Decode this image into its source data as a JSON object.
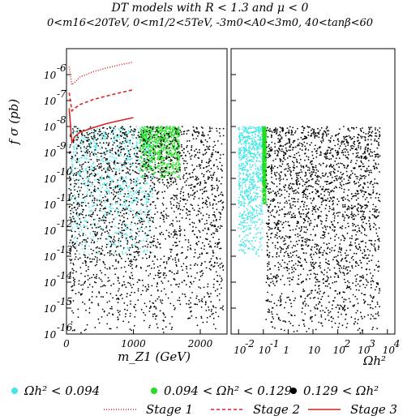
{
  "title_line1": "DT models with R < 1.3 and μ < 0",
  "title_line2": "0<m16<20TeV, 0<m1/2<5TeV, -3m0<A0<3m0, 40<tanβ<60",
  "chart_data": [
    {
      "panel": "left",
      "type": "scatter",
      "xlabel": "m_Z1 (GeV)",
      "ylabel": "f σ (pb)",
      "xlim": [
        0,
        2400
      ],
      "x_ticks": [
        0,
        1000,
        2000
      ],
      "ylim": [
        1e-16,
        1e-05
      ],
      "y_scale": "log",
      "y_tick_labels": [
        "10 -16",
        "10 -15",
        "10 -14",
        "10 -13",
        "10 -12",
        "10 -11",
        "10 -10",
        "10 -9",
        "10 -8",
        "10 -7",
        "10 -6"
      ],
      "series": [
        {
          "name": "Ωh² < 0.094",
          "color": "#40e8e8",
          "regions": [
            {
              "x": [
                60,
                1300
              ],
              "y": [
                1e-13,
                1e-08
              ]
            }
          ]
        },
        {
          "name": "0.094 < Ωh² < 0.129",
          "color": "#22dd22",
          "regions": [
            {
              "x": [
                1100,
                1700
              ],
              "y": [
                1e-10,
                1e-08
              ]
            }
          ]
        },
        {
          "name": "0.129 < Ωh²",
          "color": "#000000",
          "regions": [
            {
              "x": [
                40,
                2350
              ],
              "y": [
                1e-16,
                1e-08
              ]
            }
          ]
        }
      ],
      "curves": [
        {
          "name": "Stage 1",
          "style": "dotted",
          "color": "#dd2222",
          "x": [
            40,
            80,
            120,
            200,
            400,
            600,
            800,
            1000
          ],
          "y": [
            2e-06,
            4e-07,
            5e-07,
            8e-07,
            1.3e-06,
            1.8e-06,
            2.4e-06,
            3e-06
          ]
        },
        {
          "name": "Stage 2",
          "style": "dashed",
          "color": "#dd2222",
          "x": [
            40,
            80,
            120,
            200,
            400,
            600,
            800,
            1000
          ],
          "y": [
            2e-07,
            4e-08,
            5e-08,
            7e-08,
            1.1e-07,
            1.5e-07,
            2e-07,
            2.6e-07
          ]
        },
        {
          "name": "Stage 3",
          "style": "solid",
          "color": "#dd2222",
          "x": [
            40,
            80,
            120,
            200,
            400,
            600,
            800,
            1000
          ],
          "y": [
            5e-08,
            2.5e-09,
            4e-09,
            6e-09,
            9e-09,
            1.3e-08,
            1.7e-08,
            2.2e-08
          ]
        }
      ]
    },
    {
      "panel": "right",
      "type": "scatter",
      "xlabel": "Ωh²",
      "x_scale": "log",
      "xlim": [
        0.005,
        20000.0
      ],
      "x_tick_labels": [
        "10 -2",
        "10 -1",
        "1",
        "10",
        "10 2",
        "10 3",
        "10 4"
      ],
      "ylim": [
        1e-16,
        1e-05
      ],
      "y_scale": "log",
      "series": [
        {
          "name": "Ωh² < 0.094",
          "color": "#40e8e8",
          "regions": [
            {
              "x": [
                0.01,
                0.094
              ],
              "y": [
                1e-13,
                1e-08
              ]
            }
          ]
        },
        {
          "name": "0.094 < Ωh² < 0.129",
          "color": "#22dd22",
          "regions": [
            {
              "x": [
                0.094,
                0.129
              ],
              "y": [
                1e-11,
                1e-08
              ]
            }
          ]
        },
        {
          "name": "0.129 < Ωh²",
          "color": "#000000",
          "regions": [
            {
              "x": [
                0.129,
                5000
              ],
              "y": [
                1e-16,
                1e-08
              ]
            }
          ]
        }
      ]
    }
  ],
  "legend": {
    "items": [
      {
        "label": "Ωh² < 0.094",
        "color": "#40e8e8"
      },
      {
        "label": "0.094 < Ωh² < 0.129",
        "color": "#22dd22"
      },
      {
        "label": "0.129 < Ωh²",
        "color": "#000000"
      }
    ],
    "stages": [
      {
        "label": "Stage 1",
        "style": "dotted"
      },
      {
        "label": "Stage 2",
        "style": "dashed"
      },
      {
        "label": "Stage 3",
        "style": "solid"
      }
    ]
  }
}
